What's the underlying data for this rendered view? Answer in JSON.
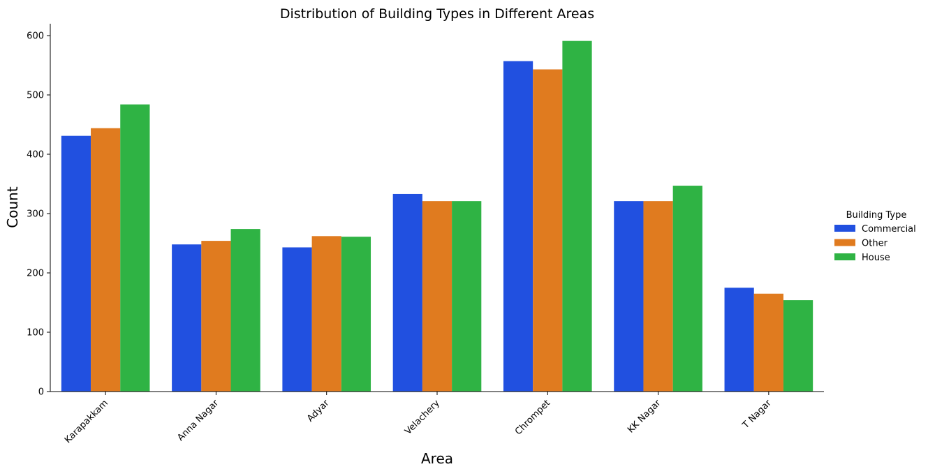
{
  "chart_data": {
    "type": "bar",
    "title": "Distribution of Building Types in Different Areas",
    "xlabel": "Area",
    "ylabel": "Count",
    "categories": [
      "Karapakkam",
      "Anna Nagar",
      "Adyar",
      "Velachery",
      "Chrompet",
      "KK Nagar",
      "T Nagar"
    ],
    "series": [
      {
        "name": "Commercial",
        "color": "#2150e0",
        "values": [
          431,
          248,
          243,
          333,
          557,
          321,
          175
        ]
      },
      {
        "name": "Other",
        "color": "#e07b1f",
        "values": [
          444,
          254,
          262,
          321,
          543,
          321,
          165
        ]
      },
      {
        "name": "House",
        "color": "#2fb344",
        "values": [
          484,
          274,
          261,
          321,
          591,
          347,
          154
        ]
      }
    ],
    "ylim": [
      0,
      620
    ],
    "yticks": [
      0,
      100,
      200,
      300,
      400,
      500,
      600
    ],
    "legend": {
      "title": "Building Type",
      "position": "right"
    },
    "grid": false
  }
}
